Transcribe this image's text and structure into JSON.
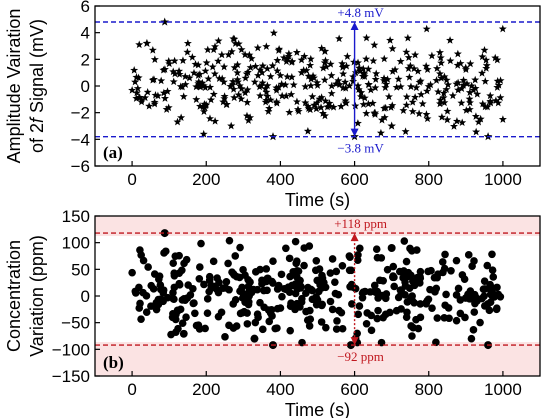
{
  "chart_data": [
    {
      "type": "scatter",
      "panel_label": "(a)",
      "xlabel": "Time (s)",
      "ylabel_line1": "Amplitude Vairation",
      "ylabel_line2_pre": "of 2",
      "ylabel_line2_italic": "f",
      "ylabel_line2_post": " Signal (mV)",
      "xlim": [
        -100,
        1100
      ],
      "ylim": [
        -6,
        6
      ],
      "xticks": [
        0,
        200,
        400,
        600,
        800,
        1000
      ],
      "yticks": [
        -6,
        -4,
        -2,
        0,
        2,
        4,
        6
      ],
      "marker": "star",
      "marker_color": "#000000",
      "n_points": 1000,
      "x_range": [
        0,
        1000
      ],
      "sample_values": [
        {
          "x": 88,
          "y": 4.8
        },
        {
          "x": 380,
          "y": -3.8
        },
        {
          "x": 600,
          "y": -3.8
        },
        {
          "x": 960,
          "y": -3.8
        },
        {
          "x": 40,
          "y": 3.2
        },
        {
          "x": 520,
          "y": 2.6
        },
        {
          "x": 700,
          "y": -3.0
        }
      ],
      "typical_range": [
        -3.8,
        4.8
      ],
      "reference_lines": [
        {
          "y": 4.8,
          "label": "+4.8 mV",
          "color": "#1a1acc"
        },
        {
          "y": -3.8,
          "label": "−3.8 mV",
          "color": "#1a1acc"
        }
      ],
      "arrow_x": 600
    },
    {
      "type": "scatter",
      "panel_label": "(b)",
      "xlabel": "Time (s)",
      "ylabel_line1": "Concentration",
      "ylabel_line2": "Variation (ppm)",
      "xlim": [
        -100,
        1100
      ],
      "ylim": [
        -150,
        150
      ],
      "xticks": [
        0,
        200,
        400,
        600,
        800,
        1000
      ],
      "yticks": [
        -150,
        -100,
        -50,
        0,
        50,
        100,
        150
      ],
      "marker": "circle",
      "marker_color": "#000000",
      "n_points": 1000,
      "x_range": [
        0,
        1000
      ],
      "sample_values": [
        {
          "x": 88,
          "y": 118
        },
        {
          "x": 380,
          "y": -92
        },
        {
          "x": 590,
          "y": -92
        },
        {
          "x": 960,
          "y": -92
        },
        {
          "x": 330,
          "y": -80
        },
        {
          "x": 700,
          "y": 90
        }
      ],
      "typical_range": [
        -92,
        118
      ],
      "reference_lines": [
        {
          "y": 118,
          "label": "+118 ppm",
          "color": "#c0181f"
        },
        {
          "y": -92,
          "label": "−92 ppm",
          "color": "#c0181f"
        }
      ],
      "arrow_x": 600
    }
  ]
}
